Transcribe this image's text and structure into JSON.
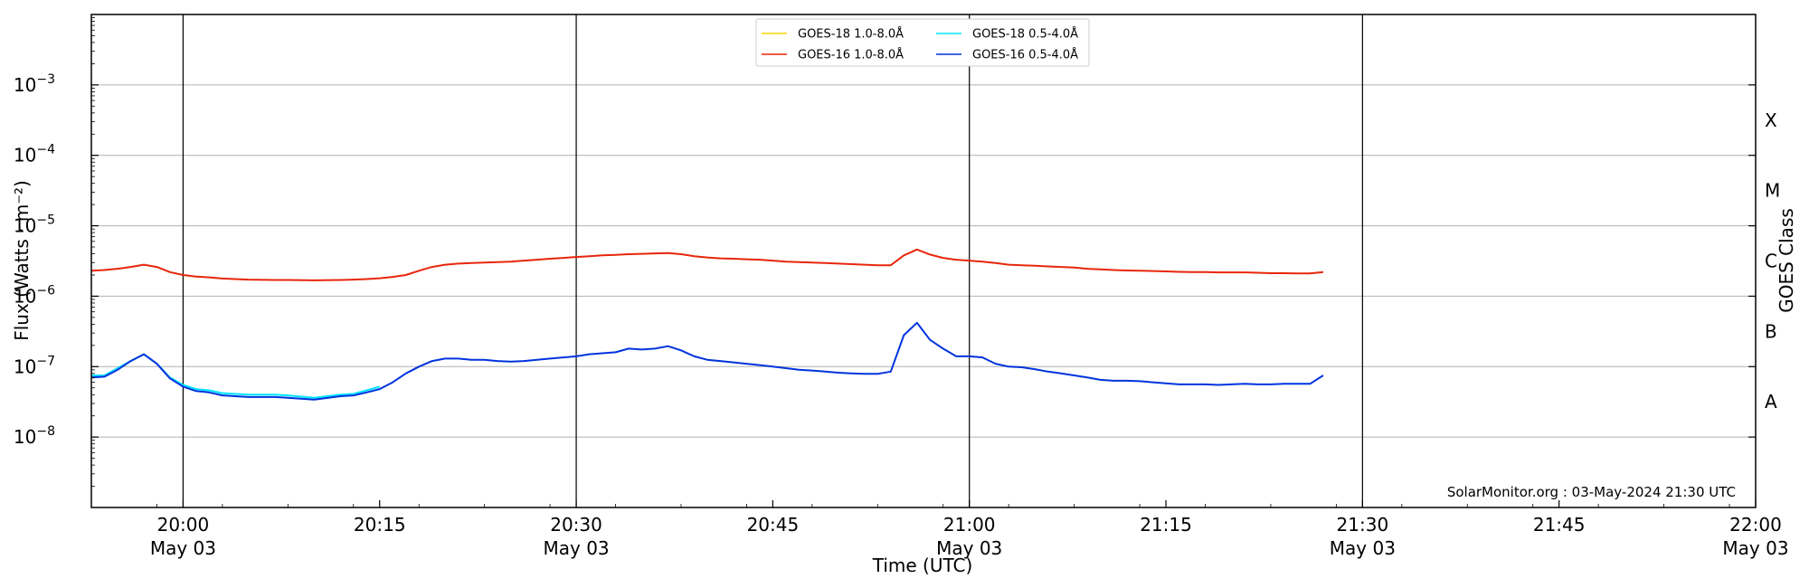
{
  "chart_data": {
    "type": "line",
    "title": "",
    "xlabel": "Time (UTC)",
    "ylabel": "Flux (Watts · m⁻²)",
    "right_ylabel": "GOES Class",
    "yscale": "log",
    "ylim": [
      1e-09,
      0.01
    ],
    "xlim": [
      "19:53",
      "22:00"
    ],
    "grid": "horizontal",
    "legend_position": "top-center",
    "annotation": "SolarMonitor.org : 03-May-2024 21:30 UTC",
    "x_ticks": [
      {
        "time": "20:00",
        "label": "20:00",
        "sublabel": "May 03",
        "major": true
      },
      {
        "time": "20:15",
        "label": "20:15",
        "sublabel": "",
        "major": false
      },
      {
        "time": "20:30",
        "label": "20:30",
        "sublabel": "May 03",
        "major": true
      },
      {
        "time": "20:45",
        "label": "20:45",
        "sublabel": "",
        "major": false
      },
      {
        "time": "21:00",
        "label": "21:00",
        "sublabel": "May 03",
        "major": true
      },
      {
        "time": "21:15",
        "label": "21:15",
        "sublabel": "",
        "major": false
      },
      {
        "time": "21:30",
        "label": "21:30",
        "sublabel": "May 03",
        "major": true
      },
      {
        "time": "21:45",
        "label": "21:45",
        "sublabel": "",
        "major": false
      },
      {
        "time": "22:00",
        "label": "22:00",
        "sublabel": "May 03",
        "major": true
      }
    ],
    "y_ticks": [
      {
        "value": 1e-08,
        "mantissa": "10",
        "exponent": "−8"
      },
      {
        "value": 1e-07,
        "mantissa": "10",
        "exponent": "−7"
      },
      {
        "value": 1e-06,
        "mantissa": "10",
        "exponent": "−6"
      },
      {
        "value": 1e-05,
        "mantissa": "10",
        "exponent": "−5"
      },
      {
        "value": 0.0001,
        "mantissa": "10",
        "exponent": "−4"
      },
      {
        "value": 0.001,
        "mantissa": "10",
        "exponent": "−3"
      }
    ],
    "goes_classes": [
      {
        "label": "A",
        "value": 3.16e-08
      },
      {
        "label": "B",
        "value": 3.16e-07
      },
      {
        "label": "C",
        "value": 3.16e-06
      },
      {
        "label": "M",
        "value": 3.16e-05
      },
      {
        "label": "X",
        "value": 0.000316
      }
    ],
    "series": [
      {
        "name": "GOES-18 1.0-8.0Å",
        "color": "#FFD700",
        "x": [],
        "y": []
      },
      {
        "name": "GOES-18 0.5-4.0Å",
        "color": "#00E5FF",
        "x": [
          "19:53",
          "19:54",
          "19:55",
          "19:56",
          "19:57",
          "19:58",
          "19:59",
          "20:00",
          "20:01",
          "20:02",
          "20:03",
          "20:05",
          "20:07",
          "20:08",
          "20:10",
          "20:12",
          "20:13",
          "20:14",
          "20:15"
        ],
        "y": [
          7.5e-08,
          7.5e-08,
          9.5e-08,
          1.2e-07,
          1.5e-07,
          1.1e-07,
          7e-08,
          5.5e-08,
          4.8e-08,
          4.6e-08,
          4.2e-08,
          4e-08,
          4e-08,
          3.9e-08,
          3.6e-08,
          4e-08,
          4.1e-08,
          4.6e-08,
          5.2e-08
        ]
      },
      {
        "name": "GOES-16 1.0-8.0Å",
        "color": "#E8260B",
        "x": [
          "19:53",
          "19:54",
          "19:55",
          "19:56",
          "19:57",
          "19:58",
          "19:59",
          "20:00",
          "20:01",
          "20:02",
          "20:03",
          "20:05",
          "20:07",
          "20:08",
          "20:10",
          "20:12",
          "20:13",
          "20:14",
          "20:15",
          "20:16",
          "20:17",
          "20:18",
          "20:19",
          "20:20",
          "20:21",
          "20:22",
          "20:23",
          "20:24",
          "20:25",
          "20:26",
          "20:27",
          "20:28",
          "20:29",
          "20:30",
          "20:31",
          "20:32",
          "20:33",
          "20:34",
          "20:35",
          "20:36",
          "20:37",
          "20:38",
          "20:39",
          "20:40",
          "20:41",
          "20:42",
          "20:43",
          "20:44",
          "20:45",
          "20:46",
          "20:47",
          "20:48",
          "20:49",
          "20:50",
          "20:51",
          "20:52",
          "20:53",
          "20:54",
          "20:55",
          "20:56",
          "20:57",
          "20:58",
          "20:59",
          "21:00",
          "21:01",
          "21:02",
          "21:03",
          "21:04",
          "21:05",
          "21:06",
          "21:07",
          "21:08",
          "21:09",
          "21:10",
          "21:11",
          "21:12",
          "21:13",
          "21:14",
          "21:15",
          "21:16",
          "21:17",
          "21:18",
          "21:19",
          "21:20",
          "21:21",
          "21:22",
          "21:23",
          "21:24",
          "21:25",
          "21:26",
          "21:27"
        ],
        "y": [
          2.3e-06,
          2.35e-06,
          2.45e-06,
          2.6e-06,
          2.8e-06,
          2.6e-06,
          2.2e-06,
          2e-06,
          1.9e-06,
          1.85e-06,
          1.78e-06,
          1.72e-06,
          1.7e-06,
          1.7e-06,
          1.68e-06,
          1.7e-06,
          1.72e-06,
          1.75e-06,
          1.8e-06,
          1.88e-06,
          2e-06,
          2.3e-06,
          2.6e-06,
          2.8e-06,
          2.9e-06,
          2.95e-06,
          3e-06,
          3.05e-06,
          3.1e-06,
          3.2e-06,
          3.3e-06,
          3.4e-06,
          3.5e-06,
          3.6e-06,
          3.7e-06,
          3.8e-06,
          3.85e-06,
          3.95e-06,
          4e-06,
          4.05e-06,
          4.1e-06,
          3.95e-06,
          3.7e-06,
          3.55e-06,
          3.45e-06,
          3.4e-06,
          3.35e-06,
          3.3e-06,
          3.2e-06,
          3.1e-06,
          3.05e-06,
          3e-06,
          2.95e-06,
          2.9e-06,
          2.85e-06,
          2.8e-06,
          2.75e-06,
          2.75e-06,
          3.8e-06,
          4.6e-06,
          3.9e-06,
          3.5e-06,
          3.3e-06,
          3.2e-06,
          3.1e-06,
          2.95e-06,
          2.8e-06,
          2.75e-06,
          2.7e-06,
          2.65e-06,
          2.6e-06,
          2.55e-06,
          2.45e-06,
          2.4e-06,
          2.35e-06,
          2.32e-06,
          2.3e-06,
          2.28e-06,
          2.25e-06,
          2.22e-06,
          2.2e-06,
          2.2e-06,
          2.18e-06,
          2.18e-06,
          2.18e-06,
          2.15e-06,
          2.12e-06,
          2.12e-06,
          2.1e-06,
          2.1e-06,
          2.2e-06
        ]
      },
      {
        "name": "GOES-16 0.5-4.0Å",
        "color": "#0033DD",
        "x": [
          "19:53",
          "19:54",
          "19:55",
          "19:56",
          "19:57",
          "19:58",
          "19:59",
          "20:00",
          "20:01",
          "20:02",
          "20:03",
          "20:05",
          "20:07",
          "20:08",
          "20:10",
          "20:12",
          "20:13",
          "20:14",
          "20:15",
          "20:16",
          "20:17",
          "20:18",
          "20:19",
          "20:20",
          "20:21",
          "20:22",
          "20:23",
          "20:24",
          "20:25",
          "20:26",
          "20:27",
          "20:28",
          "20:29",
          "20:30",
          "20:31",
          "20:32",
          "20:33",
          "20:34",
          "20:35",
          "20:36",
          "20:37",
          "20:38",
          "20:39",
          "20:40",
          "20:41",
          "20:42",
          "20:43",
          "20:44",
          "20:45",
          "20:46",
          "20:47",
          "20:48",
          "20:49",
          "20:50",
          "20:51",
          "20:52",
          "20:53",
          "20:54",
          "20:55",
          "20:56",
          "20:57",
          "20:58",
          "20:59",
          "21:00",
          "21:01",
          "21:02",
          "21:03",
          "21:04",
          "21:05",
          "21:06",
          "21:07",
          "21:08",
          "21:09",
          "21:10",
          "21:11",
          "21:12",
          "21:13",
          "21:14",
          "21:15",
          "21:16",
          "21:17",
          "21:18",
          "21:19",
          "21:20",
          "21:21",
          "21:22",
          "21:23",
          "21:24",
          "21:25",
          "21:26",
          "21:27"
        ],
        "y": [
          7e-08,
          7.2e-08,
          9e-08,
          1.2e-07,
          1.5e-07,
          1.1e-07,
          6.8e-08,
          5.2e-08,
          4.5e-08,
          4.3e-08,
          3.9e-08,
          3.7e-08,
          3.7e-08,
          3.6e-08,
          3.4e-08,
          3.8e-08,
          3.9e-08,
          4.3e-08,
          4.8e-08,
          6e-08,
          8e-08,
          1e-07,
          1.2e-07,
          1.3e-07,
          1.3e-07,
          1.25e-07,
          1.25e-07,
          1.2e-07,
          1.18e-07,
          1.2e-07,
          1.25e-07,
          1.3e-07,
          1.35e-07,
          1.4e-07,
          1.5e-07,
          1.55e-07,
          1.6e-07,
          1.8e-07,
          1.75e-07,
          1.8e-07,
          1.95e-07,
          1.7e-07,
          1.4e-07,
          1.25e-07,
          1.2e-07,
          1.15e-07,
          1.1e-07,
          1.05e-07,
          1e-07,
          9.5e-08,
          9e-08,
          8.8e-08,
          8.5e-08,
          8.2e-08,
          8e-08,
          7.9e-08,
          7.9e-08,
          8.5e-08,
          2.8e-07,
          4.2e-07,
          2.4e-07,
          1.8e-07,
          1.4e-07,
          1.4e-07,
          1.35e-07,
          1.1e-07,
          1e-07,
          9.8e-08,
          9.2e-08,
          8.5e-08,
          8e-08,
          7.5e-08,
          7e-08,
          6.5e-08,
          6.3e-08,
          6.3e-08,
          6.2e-08,
          6e-08,
          5.8e-08,
          5.6e-08,
          5.6e-08,
          5.6e-08,
          5.5e-08,
          5.6e-08,
          5.7e-08,
          5.6e-08,
          5.6e-08,
          5.7e-08,
          5.7e-08,
          5.7e-08,
          7.5e-08
        ]
      }
    ]
  }
}
